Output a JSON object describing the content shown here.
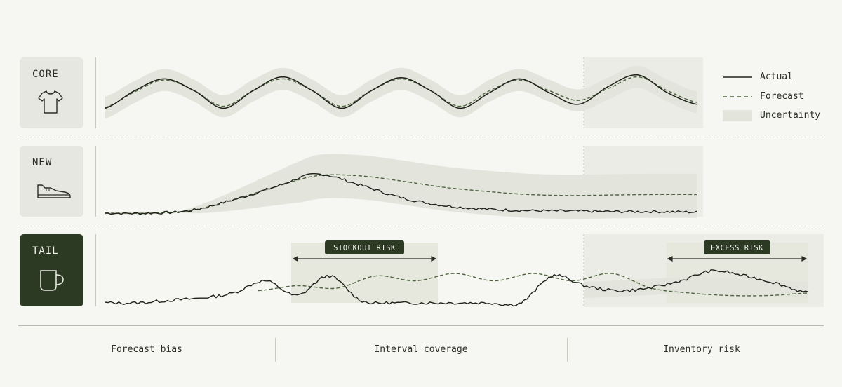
{
  "colors": {
    "background": "#f6f6f2",
    "band": "#e3e5dc",
    "actual": "#1e2119",
    "forecast": "#4f6440",
    "dark_green": "#2c3a24",
    "tag_bg": "#e6e7e0",
    "future_shade": "#ebece5"
  },
  "legend": {
    "actual": "Actual",
    "forecast": "Forecast",
    "uncertainty": "Uncertainty"
  },
  "rows": [
    {
      "label": "CORE",
      "icon": "t-shirt-icon"
    },
    {
      "label": "NEW",
      "icon": "sneaker-icon"
    },
    {
      "label": "TAIL",
      "icon": "mug-icon"
    }
  ],
  "annotations": {
    "stockout": "STOCKOUT RISK",
    "excess": "EXCESS RISK"
  },
  "footer": [
    "Forecast bias",
    "Interval coverage",
    "Inventory risk"
  ],
  "chart_data": [
    {
      "type": "line",
      "series": [
        {
          "name": "Actual",
          "values": [
            0.1,
            0.55,
            0.85,
            0.55,
            0.1,
            0.55,
            0.9,
            0.55,
            0.1,
            0.55,
            0.88,
            0.55,
            0.1,
            0.5,
            0.85,
            0.5,
            0.2,
            0.65,
            0.95,
            0.5,
            0.2
          ]
        },
        {
          "name": "Forecast",
          "values": [
            0.12,
            0.52,
            0.82,
            0.55,
            0.15,
            0.55,
            0.85,
            0.55,
            0.15,
            0.55,
            0.85,
            0.55,
            0.15,
            0.55,
            0.82,
            0.55,
            0.3,
            0.6,
            0.9,
            0.55,
            0.25
          ]
        }
      ]
    },
    {
      "type": "line",
      "series": [
        {
          "name": "Actual",
          "values": [
            0.0,
            0.0,
            0.05,
            0.25,
            0.5,
            0.75,
            0.55,
            0.3,
            0.15,
            0.08,
            0.05,
            0.04,
            0.03,
            0.03,
            0.02
          ]
        },
        {
          "name": "Forecast",
          "values": [
            0.0,
            0.0,
            0.05,
            0.25,
            0.5,
            0.72,
            0.72,
            0.62,
            0.5,
            0.42,
            0.36,
            0.34,
            0.35,
            0.36,
            0.36
          ]
        }
      ]
    },
    {
      "type": "line",
      "series": [
        {
          "name": "Actual",
          "values": [
            0.0,
            0.0,
            0.05,
            0.1,
            0.2,
            0.45,
            0.15,
            0.55,
            0.05,
            0.0,
            0.0,
            0.0,
            0.0,
            0.0,
            0.55,
            0.35,
            0.25,
            0.3,
            0.45,
            0.65,
            0.55,
            0.4,
            0.2
          ]
        },
        {
          "name": "Forecast",
          "values": [
            0.25,
            0.35,
            0.3,
            0.55,
            0.45,
            0.6,
            0.45,
            0.6,
            0.45,
            0.6,
            0.3,
            0.2,
            0.15,
            0.15,
            0.2
          ]
        }
      ]
    }
  ]
}
